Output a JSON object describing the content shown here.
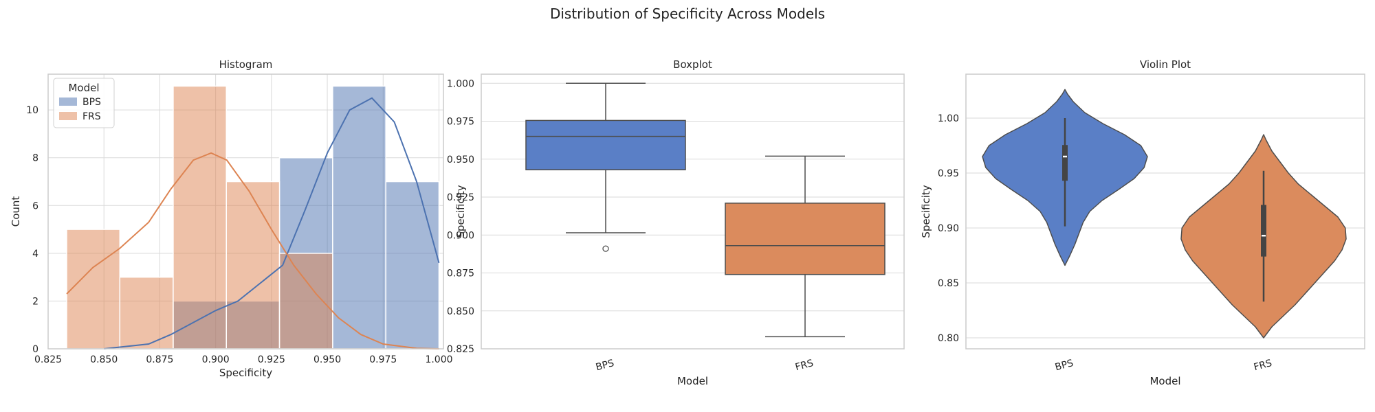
{
  "figure": {
    "suptitle": "Distribution of Specificity Across Models"
  },
  "colors": {
    "bps": "#4c72b0",
    "frs": "#dd8452",
    "bps_box": "#5a7fc6",
    "frs_box": "#db8b5d",
    "grid": "#d9d9d9",
    "frame": "#cccccc"
  },
  "chart_data": [
    {
      "type": "histogram",
      "title": "Histogram",
      "xlabel": "Specificity",
      "ylabel": "Count",
      "xlim": [
        0.825,
        1.002
      ],
      "ylim": [
        0,
        11.5
      ],
      "xticks": [
        "0.825",
        "0.850",
        "0.875",
        "0.900",
        "0.925",
        "0.950",
        "0.975",
        "1.000"
      ],
      "yticks": [
        "0",
        "2",
        "4",
        "6",
        "8",
        "10"
      ],
      "legend": {
        "title": "Model",
        "placement": "top-left",
        "entries": [
          "BPS",
          "FRS"
        ]
      },
      "bin_edges": [
        0.8333,
        0.8571,
        0.881,
        0.9048,
        0.9286,
        0.9524,
        0.9762,
        1.0
      ],
      "series": [
        {
          "name": "BPS",
          "counts": [
            0,
            0,
            2,
            2,
            8,
            11,
            7
          ],
          "kde": [
            [
              0.85,
              0.0
            ],
            [
              0.87,
              0.2
            ],
            [
              0.88,
              0.6
            ],
            [
              0.9,
              1.6
            ],
            [
              0.91,
              2.0
            ],
            [
              0.93,
              3.5
            ],
            [
              0.94,
              5.8
            ],
            [
              0.95,
              8.2
            ],
            [
              0.96,
              10.0
            ],
            [
              0.97,
              10.5
            ],
            [
              0.98,
              9.5
            ],
            [
              0.99,
              7.0
            ],
            [
              1.0,
              3.6
            ]
          ]
        },
        {
          "name": "FRS",
          "counts": [
            5,
            3,
            11,
            7,
            4,
            0,
            0
          ],
          "kde": [
            [
              0.8333,
              2.3
            ],
            [
              0.845,
              3.4
            ],
            [
              0.857,
              4.2
            ],
            [
              0.87,
              5.3
            ],
            [
              0.88,
              6.7
            ],
            [
              0.89,
              7.9
            ],
            [
              0.898,
              8.2
            ],
            [
              0.905,
              7.9
            ],
            [
              0.915,
              6.6
            ],
            [
              0.925,
              5.0
            ],
            [
              0.935,
              3.5
            ],
            [
              0.945,
              2.3
            ],
            [
              0.955,
              1.3
            ],
            [
              0.965,
              0.6
            ],
            [
              0.975,
              0.2
            ],
            [
              0.99,
              0.02
            ],
            [
              1.0,
              0.0
            ]
          ]
        }
      ]
    },
    {
      "type": "box",
      "title": "Boxplot",
      "xlabel": "Model",
      "ylabel": "Specificity",
      "ylim": [
        0.825,
        1.006
      ],
      "yticks": [
        "0.825",
        "0.850",
        "0.875",
        "0.900",
        "0.925",
        "0.950",
        "0.975",
        "1.000"
      ],
      "categories": [
        "BPS",
        "FRS"
      ],
      "series": [
        {
          "name": "BPS",
          "whislo": 0.9015,
          "q1": 0.943,
          "median": 0.965,
          "q3": 0.9755,
          "whishi": 1.0,
          "fliers": [
            0.891
          ]
        },
        {
          "name": "FRS",
          "whislo": 0.833,
          "q1": 0.874,
          "median": 0.893,
          "q3": 0.921,
          "whishi": 0.952,
          "fliers": []
        }
      ]
    },
    {
      "type": "violin",
      "title": "Violin Plot",
      "xlabel": "Model",
      "ylabel": "Specificity",
      "ylim": [
        0.79,
        1.04
      ],
      "yticks": [
        "0.80",
        "0.85",
        "0.90",
        "0.95",
        "1.00"
      ],
      "categories": [
        "BPS",
        "FRS"
      ],
      "series": [
        {
          "name": "BPS",
          "whislo": 0.9015,
          "q1": 0.943,
          "median": 0.965,
          "q3": 0.9755,
          "whishi": 1.0,
          "profile": [
            [
              0.866,
              0.0
            ],
            [
              0.875,
              0.06
            ],
            [
              0.885,
              0.12
            ],
            [
              0.895,
              0.17
            ],
            [
              0.905,
              0.22
            ],
            [
              0.915,
              0.3
            ],
            [
              0.925,
              0.45
            ],
            [
              0.935,
              0.65
            ],
            [
              0.945,
              0.84
            ],
            [
              0.955,
              0.96
            ],
            [
              0.965,
              1.0
            ],
            [
              0.975,
              0.92
            ],
            [
              0.985,
              0.72
            ],
            [
              0.995,
              0.46
            ],
            [
              1.005,
              0.24
            ],
            [
              1.015,
              0.1
            ],
            [
              1.022,
              0.03
            ],
            [
              1.026,
              0.0
            ]
          ]
        },
        {
          "name": "FRS",
          "whislo": 0.833,
          "q1": 0.874,
          "median": 0.893,
          "q3": 0.921,
          "whishi": 0.952,
          "profile": [
            [
              0.8,
              0.0
            ],
            [
              0.81,
              0.1
            ],
            [
              0.82,
              0.24
            ],
            [
              0.83,
              0.38
            ],
            [
              0.84,
              0.5
            ],
            [
              0.85,
              0.62
            ],
            [
              0.86,
              0.74
            ],
            [
              0.87,
              0.86
            ],
            [
              0.88,
              0.95
            ],
            [
              0.89,
              1.0
            ],
            [
              0.9,
              0.99
            ],
            [
              0.91,
              0.9
            ],
            [
              0.92,
              0.74
            ],
            [
              0.93,
              0.58
            ],
            [
              0.94,
              0.42
            ],
            [
              0.95,
              0.3
            ],
            [
              0.96,
              0.2
            ],
            [
              0.97,
              0.1
            ],
            [
              0.98,
              0.03
            ],
            [
              0.985,
              0.0
            ]
          ]
        }
      ]
    }
  ]
}
